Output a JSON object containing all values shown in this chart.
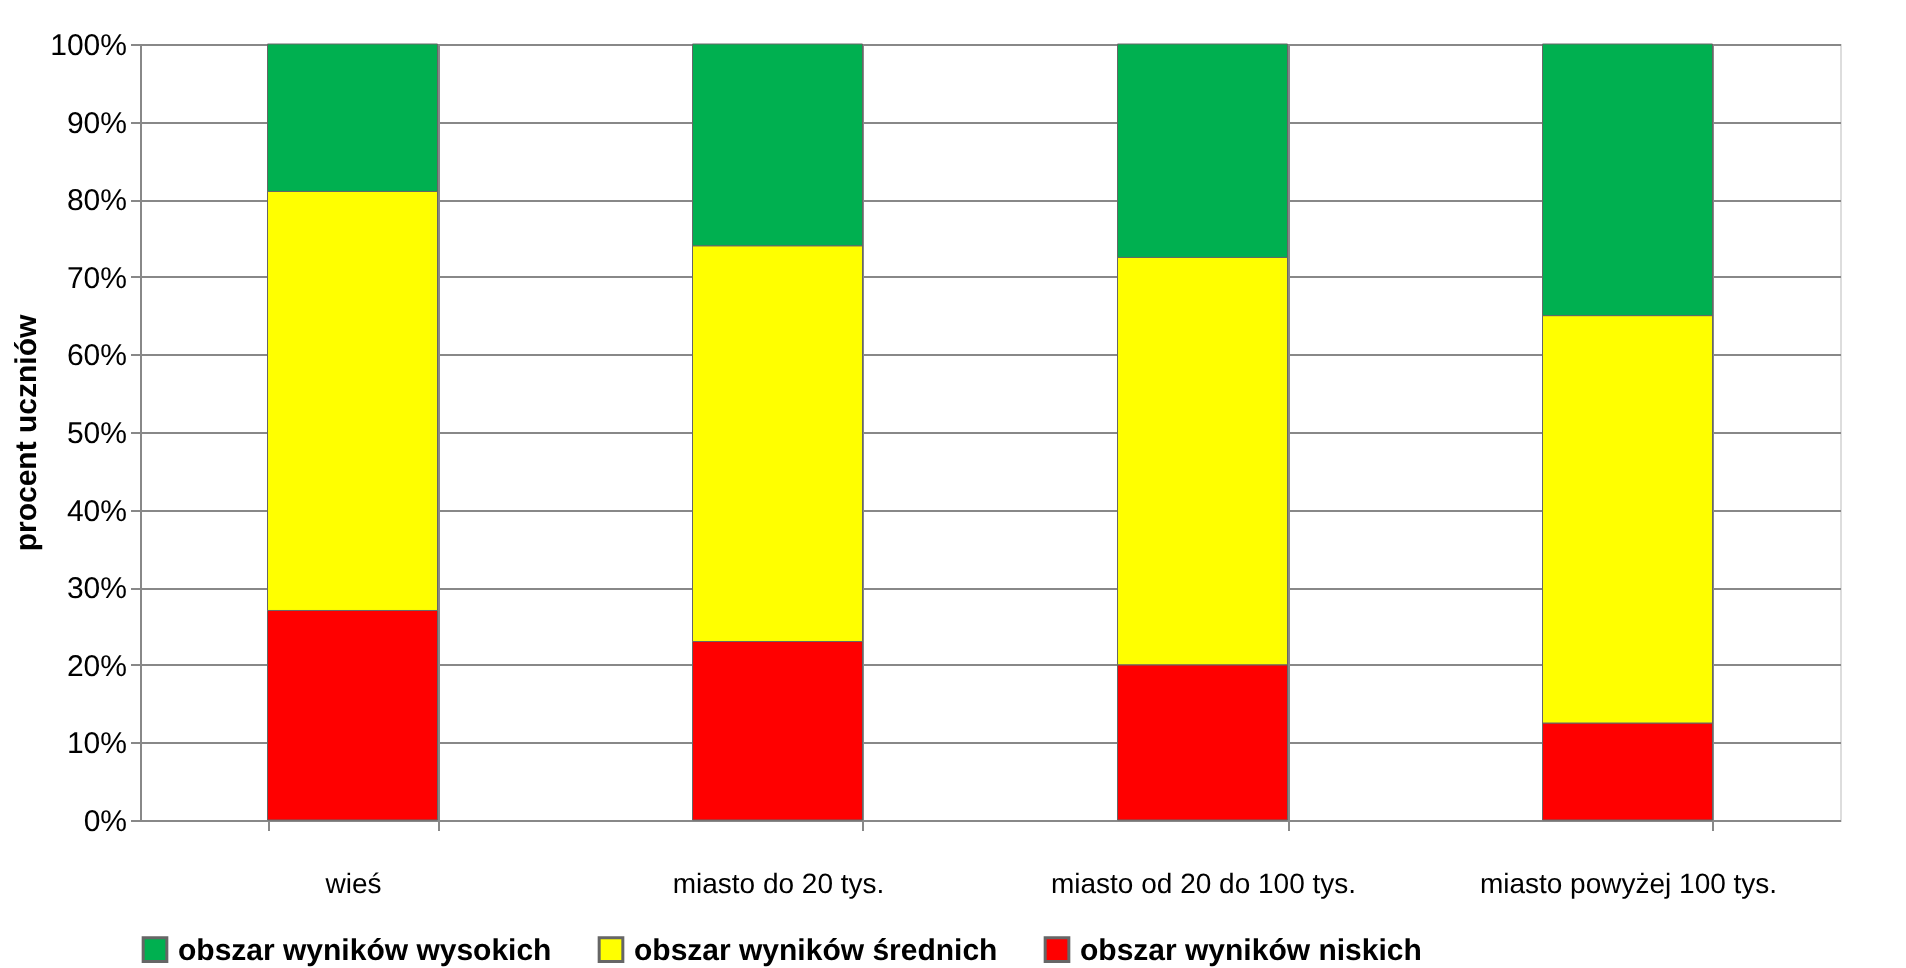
{
  "chart_data": {
    "type": "bar",
    "stacked": true,
    "ylabel": "procent  uczniów",
    "categories": [
      "wieś",
      "miasto do 20 tys.",
      "miasto od 20 do 100 tys.",
      "miasto powyżej 100 tys."
    ],
    "series": [
      {
        "name": "obszar wyników niskich",
        "color": "#ff0000",
        "values": [
          27,
          23,
          20,
          12.5
        ]
      },
      {
        "name": "obszar wyników średnich",
        "color": "#ffff00",
        "values": [
          54,
          51,
          52.5,
          52.5
        ]
      },
      {
        "name": "obszar wyników wysokich",
        "color": "#00b050",
        "values": [
          19,
          26,
          27.5,
          35
        ]
      }
    ],
    "ylim": [
      0,
      100
    ],
    "yticks": [
      {
        "value": 0,
        "label": "0%"
      },
      {
        "value": 10,
        "label": "10%"
      },
      {
        "value": 20,
        "label": "20%"
      },
      {
        "value": 30,
        "label": "30%"
      },
      {
        "value": 40,
        "label": "40%"
      },
      {
        "value": 50,
        "label": "50%"
      },
      {
        "value": 60,
        "label": "60%"
      },
      {
        "value": 70,
        "label": "70%"
      },
      {
        "value": 80,
        "label": "80%"
      },
      {
        "value": 90,
        "label": "90%"
      },
      {
        "value": 100,
        "label": "100%"
      }
    ],
    "grid": true,
    "legend": "bottom"
  }
}
